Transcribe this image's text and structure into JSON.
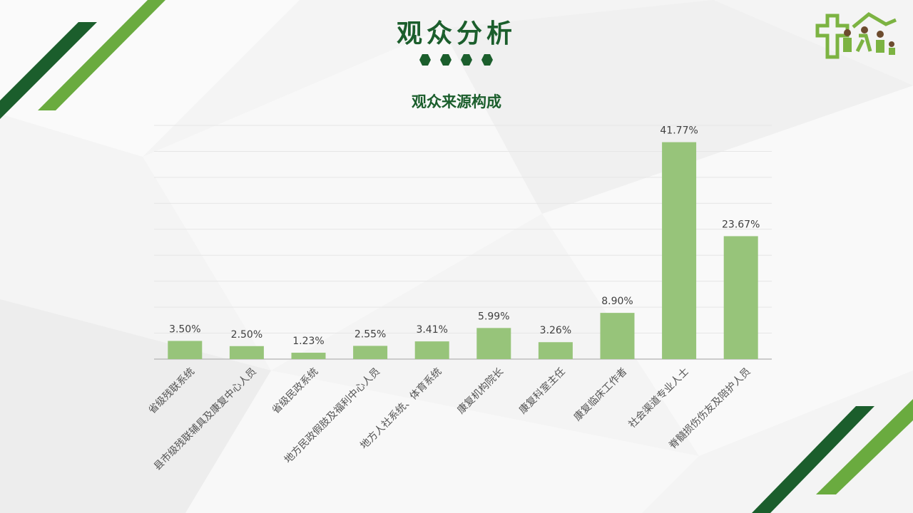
{
  "slide": {
    "title": "观众分析",
    "colors": {
      "dark_green": "#1b5e2c",
      "light_green": "#6aab3f",
      "bar": "#97c47a"
    }
  },
  "chart_data": {
    "type": "bar",
    "title": "观众来源构成",
    "categories": [
      "省级残联系统",
      "县市级残联辅具及康复中心人员",
      "省级民政系统",
      "地方民政假肢及福利中心人员",
      "地方人社系统、体育系统",
      "康复机构院长",
      "康复科室主任",
      "康复临床工作者",
      "社会渠道专业人士",
      "脊髓损伤伤友及陪护人员"
    ],
    "values": [
      3.5,
      2.5,
      1.23,
      2.55,
      3.41,
      5.99,
      3.26,
      8.9,
      41.77,
      23.67
    ],
    "labels": [
      "3.50%",
      "2.50%",
      "1.23%",
      "2.55%",
      "3.41%",
      "5.99%",
      "3.26%",
      "8.90%",
      "41.77%",
      "23.67%"
    ],
    "ylim": [
      0,
      45
    ],
    "grid": true,
    "legend": "none"
  }
}
